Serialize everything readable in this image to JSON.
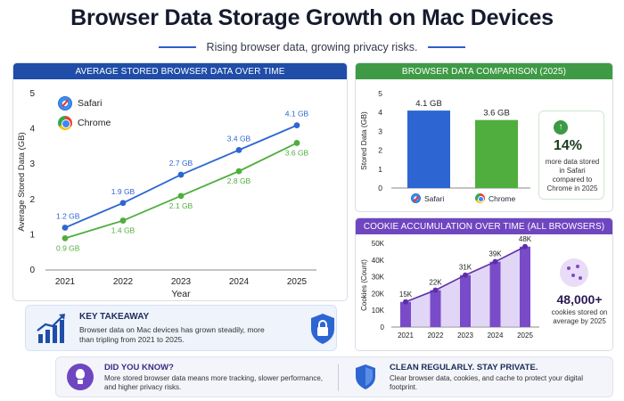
{
  "title": "Browser Data Storage Growth on Mac Devices",
  "subtitle": "Rising browser data, growing privacy risks.",
  "colors": {
    "safari": "#2d66d2",
    "chrome": "#4fae3d",
    "cookies": "#7a4bc9",
    "blue_panel": "#1f4da8",
    "green_panel": "#3f9a45",
    "purple_panel": "#6f46c0"
  },
  "panels": {
    "line": {
      "title": "AVERAGE STORED BROWSER DATA OVER TIME"
    },
    "bar": {
      "title": "BROWSER DATA COMPARISON (2025)"
    },
    "cookie": {
      "title": "COOKIE ACCUMULATION OVER TIME (ALL BROWSERS)"
    }
  },
  "chart_data": [
    {
      "type": "line",
      "title": "AVERAGE STORED BROWSER DATA OVER TIME",
      "xlabel": "Year",
      "ylabel": "Average Stored Data (GB)",
      "x": [
        "2021",
        "2022",
        "2023",
        "2024",
        "2025"
      ],
      "ylim": [
        0,
        5
      ],
      "yticks": [
        "0",
        "1",
        "2",
        "3",
        "4",
        "5"
      ],
      "legend_position": "top-left",
      "grid": false,
      "series": [
        {
          "name": "Safari",
          "color": "#2d66d2",
          "values": [
            1.2,
            1.9,
            2.7,
            3.4,
            4.1
          ],
          "labels": [
            "1.2 GB",
            "1.9 GB",
            "2.7 GB",
            "3.4 GB",
            "4.1 GB"
          ]
        },
        {
          "name": "Chrome",
          "color": "#4fae3d",
          "values": [
            0.9,
            1.4,
            2.1,
            2.8,
            3.6
          ],
          "labels": [
            "0.9 GB",
            "1.4 GB",
            "2.1 GB",
            "2.8 GB",
            "3.6 GB"
          ]
        }
      ]
    },
    {
      "type": "bar",
      "title": "BROWSER DATA COMPARISON (2025)",
      "ylabel": "Stored Data (GB)",
      "categories": [
        "Safari",
        "Chrome"
      ],
      "values": [
        4.1,
        3.6
      ],
      "labels": [
        "4.1 GB",
        "3.6 GB"
      ],
      "colors": [
        "#2d66d2",
        "#4fae3d"
      ],
      "ylim": [
        0,
        5
      ],
      "yticks": [
        "0",
        "1",
        "2",
        "3",
        "4",
        "5"
      ]
    },
    {
      "type": "area",
      "title": "COOKIE ACCUMULATION OVER TIME (ALL BROWSERS)",
      "ylabel": "Cookies (Count)",
      "categories": [
        "2021",
        "2022",
        "2023",
        "2024",
        "2025"
      ],
      "values": [
        15000,
        22000,
        31000,
        39000,
        48000
      ],
      "labels": [
        "15K",
        "22K",
        "31K",
        "39K",
        "48K"
      ],
      "ylim": [
        0,
        50000
      ],
      "yticks": [
        "0",
        "10K",
        "20K",
        "30K",
        "40K",
        "50K"
      ]
    }
  ],
  "stat": {
    "value": "14%",
    "text": "more data stored in Safari compared to Chrome in 2025"
  },
  "cookie_stat": {
    "value": "48,000+",
    "text": "cookies stored on average by 2025"
  },
  "takeaway": {
    "title": "KEY TAKEAWAY",
    "text": "Browser data on Mac devices has grown steadily, more than tripling from 2021 to 2025."
  },
  "did_you_know": {
    "title": "DID YOU KNOW?",
    "text": "More stored browser data means more tracking, slower performance, and higher privacy risks."
  },
  "clean": {
    "title": "CLEAN REGULARLY. STAY PRIVATE.",
    "text": "Clear browser data, cookies, and cache to protect your digital footprint."
  },
  "icons": [
    "safari-icon",
    "chrome-icon",
    "growth-chart-icon",
    "lock-icon",
    "up-arrow-icon",
    "cookie-icon",
    "lightbulb-icon",
    "shield-icon"
  ]
}
